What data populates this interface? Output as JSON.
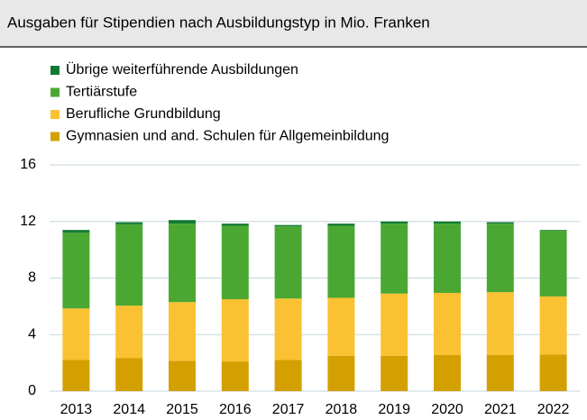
{
  "chart_data": {
    "type": "stacked_bar",
    "title": "Ausgaben für Stipendien nach Ausbildungstyp in Mio. Franken",
    "categories": [
      "2013",
      "2014",
      "2015",
      "2016",
      "2017",
      "2018",
      "2019",
      "2020",
      "2021",
      "2022"
    ],
    "series": [
      {
        "name": "Gymnasien und and. Schulen für Allgemeinbildung",
        "color": "#d4a000",
        "values": [
          2.2,
          2.35,
          2.15,
          2.1,
          2.2,
          2.5,
          2.5,
          2.55,
          2.55,
          2.6
        ]
      },
      {
        "name": "Berufliche Grundbildung",
        "color": "#fac232",
        "values": [
          3.65,
          3.7,
          4.15,
          4.4,
          4.35,
          4.1,
          4.4,
          4.4,
          4.45,
          4.1
        ]
      },
      {
        "name": "Tertiärstufe",
        "color": "#4aa832",
        "values": [
          5.35,
          5.75,
          5.55,
          5.2,
          5.1,
          5.1,
          4.95,
          4.9,
          4.85,
          4.65
        ]
      },
      {
        "name": "Übrige weiterführende Ausbildungen",
        "color": "#147a32",
        "values": [
          0.2,
          0.15,
          0.25,
          0.15,
          0.1,
          0.15,
          0.15,
          0.15,
          0.1,
          0.05
        ]
      }
    ],
    "ylim": [
      0,
      16
    ],
    "yticks": [
      0,
      4,
      8,
      12,
      16
    ],
    "grid": true
  }
}
